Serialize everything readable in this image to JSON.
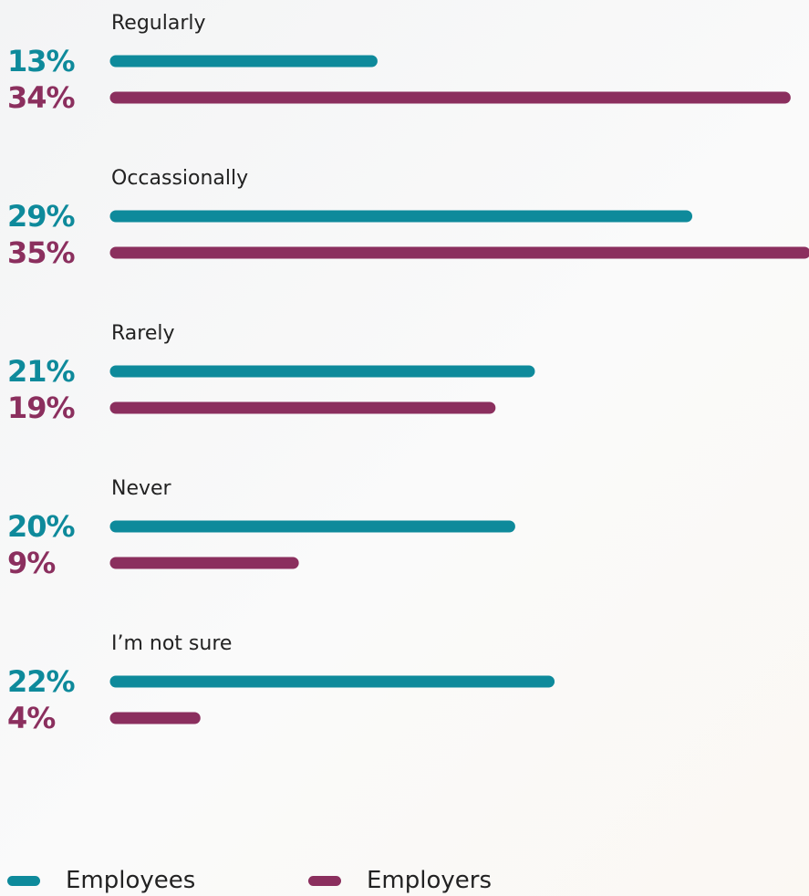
{
  "colors": {
    "employees": "#0e8a9b",
    "employers": "#8b2f5e",
    "text": "#222222"
  },
  "chart_data": {
    "type": "bar",
    "orientation": "horizontal",
    "categories": [
      "Regularly",
      "Occassionally",
      "Rarely",
      "Never",
      "I’m not sure"
    ],
    "series": [
      {
        "name": "Employees",
        "color": "#0e8a9b",
        "values": [
          13,
          29,
          21,
          20,
          22
        ],
        "labels": [
          "13%",
          "29%",
          "21%",
          "20%",
          "22%"
        ]
      },
      {
        "name": "Employers",
        "color": "#8b2f5e",
        "values": [
          34,
          35,
          19,
          9,
          4
        ],
        "labels": [
          "34%",
          "35%",
          "19%",
          "9%",
          "4%"
        ]
      }
    ],
    "xlim": [
      0,
      35
    ],
    "grid": false,
    "legend_position": "bottom-left"
  }
}
